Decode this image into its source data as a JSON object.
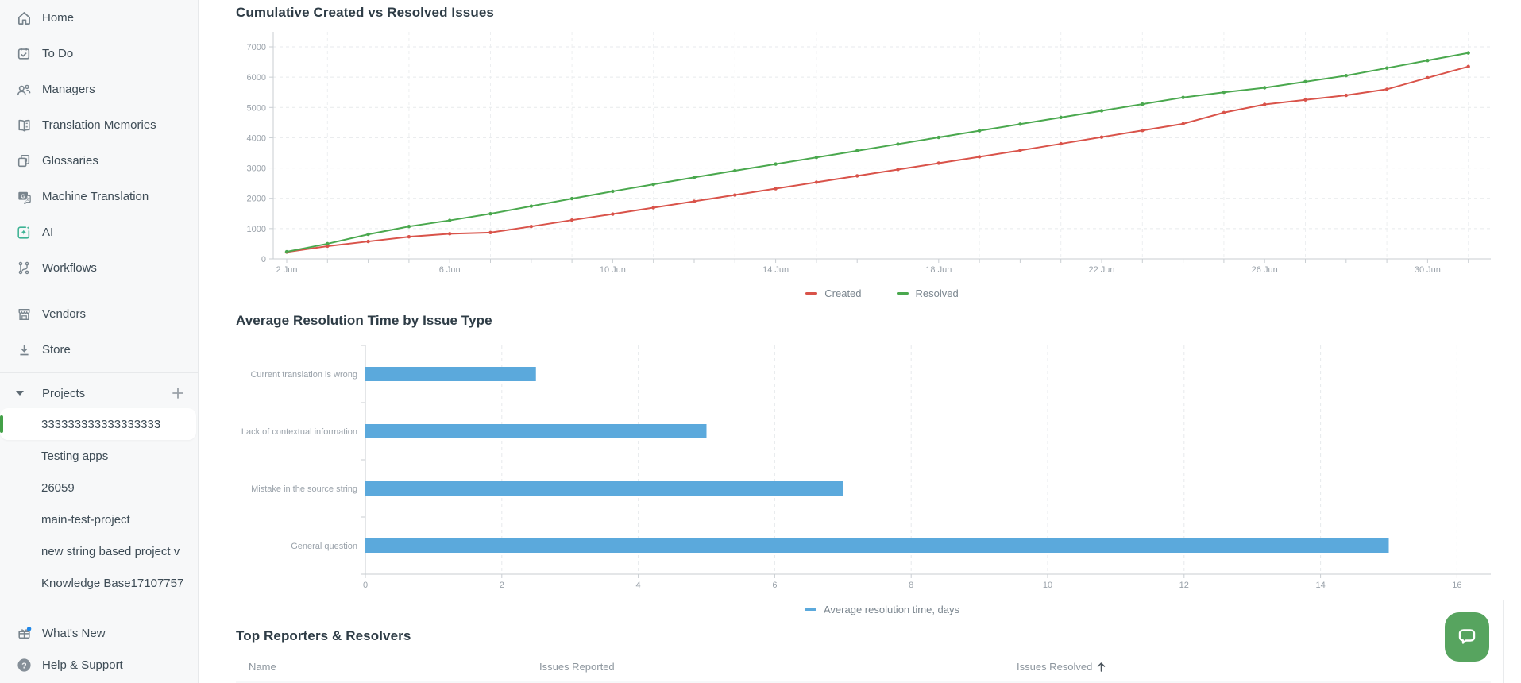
{
  "sidebar": {
    "nav_top": [
      {
        "icon": "home-icon",
        "label": "Home"
      },
      {
        "icon": "todo-calendar-icon",
        "label": "To Do"
      },
      {
        "icon": "managers-people-icon",
        "label": "Managers"
      },
      {
        "icon": "translation-memories-book-icon",
        "label": "Translation Memories"
      },
      {
        "icon": "glossaries-icon",
        "label": "Glossaries"
      },
      {
        "icon": "machine-translation-icon",
        "label": "Machine Translation"
      },
      {
        "icon": "ai-sparkle-icon",
        "label": "AI"
      },
      {
        "icon": "workflows-icon",
        "label": "Workflows"
      }
    ],
    "nav_mid": [
      {
        "icon": "vendors-storefront-icon",
        "label": "Vendors"
      },
      {
        "icon": "store-download-icon",
        "label": "Store"
      }
    ],
    "projects": {
      "label": "Projects",
      "items": [
        "333333333333333333",
        "Testing apps",
        "26059",
        "main-test-project",
        "new string based project v",
        "Knowledge Base17107757"
      ],
      "selected_index": 0
    },
    "nav_bottom": [
      {
        "icon": "whats-new-icon",
        "label": "What's New",
        "badge": "blue-dot"
      },
      {
        "icon": "help-circle-icon",
        "label": "Help & Support"
      }
    ]
  },
  "chart_data": [
    {
      "type": "line",
      "title": "Cumulative Created vs Resolved Issues",
      "x": [
        "2 Jun",
        "3 Jun",
        "4 Jun",
        "5 Jun",
        "6 Jun",
        "7 Jun",
        "8 Jun",
        "9 Jun",
        "10 Jun",
        "11 Jun",
        "12 Jun",
        "13 Jun",
        "14 Jun",
        "15 Jun",
        "16 Jun",
        "17 Jun",
        "18 Jun",
        "19 Jun",
        "20 Jun",
        "21 Jun",
        "22 Jun",
        "23 Jun",
        "24 Jun",
        "25 Jun",
        "26 Jun",
        "27 Jun",
        "28 Jun",
        "29 Jun",
        "30 Jun",
        "1 Jul"
      ],
      "x_labels_shown": [
        "2 Jun",
        "6 Jun",
        "10 Jun",
        "14 Jun",
        "18 Jun",
        "22 Jun",
        "26 Jun",
        "30 Jun"
      ],
      "label_every": 4,
      "series": [
        {
          "name": "Created",
          "color": "#d9534a",
          "values": [
            225,
            420,
            575,
            730,
            830,
            870,
            1070,
            1280,
            1480,
            1690,
            1900,
            2110,
            2320,
            2530,
            2740,
            2950,
            3160,
            3370,
            3580,
            3800,
            4020,
            4240,
            4460,
            4830,
            5100,
            5250,
            5400,
            5600,
            5980,
            6350
          ]
        },
        {
          "name": "Resolved",
          "color": "#4aa84e",
          "values": [
            235,
            500,
            810,
            1070,
            1270,
            1490,
            1740,
            1990,
            2230,
            2460,
            2690,
            2910,
            3130,
            3350,
            3570,
            3790,
            4010,
            4230,
            4450,
            4670,
            4890,
            5110,
            5330,
            5500,
            5650,
            5850,
            6050,
            6300,
            6550,
            6800
          ]
        }
      ],
      "ylim": [
        0,
        7500
      ],
      "y_ticks": [
        0,
        1000,
        2000,
        3000,
        4000,
        5000,
        6000,
        7000
      ],
      "grid": "dashed",
      "legend_position": "bottom"
    },
    {
      "type": "bar",
      "orientation": "horizontal",
      "title": "Average Resolution Time by Issue Type",
      "categories": [
        "Current translation is wrong",
        "Lack of contextual information",
        "Mistake in the source string",
        "General question"
      ],
      "values": [
        2.5,
        5,
        7,
        15
      ],
      "series_name": "Average resolution time, days",
      "bar_color": "#5ba9dc",
      "xlim": [
        0,
        16.5
      ],
      "x_ticks": [
        0,
        2,
        4,
        6,
        8,
        10,
        12,
        14,
        16
      ],
      "grid": "dashed",
      "legend_position": "bottom"
    }
  ],
  "table": {
    "title": "Top Reporters & Resolvers",
    "columns": [
      "Name",
      "Issues Reported",
      "Issues Resolved"
    ],
    "sort_column": "Issues Resolved",
    "sort_direction": "ascending",
    "rows": []
  },
  "colors": {
    "created_line": "#d9534a",
    "resolved_line": "#4aa84e",
    "bar_blue": "#5ba9dc",
    "selected_accent_green": "#43a047",
    "chat_button_green": "#57a45f",
    "sidebar_bg": "#f7f8f9",
    "axis_label_gray": "#9aa2aa"
  }
}
